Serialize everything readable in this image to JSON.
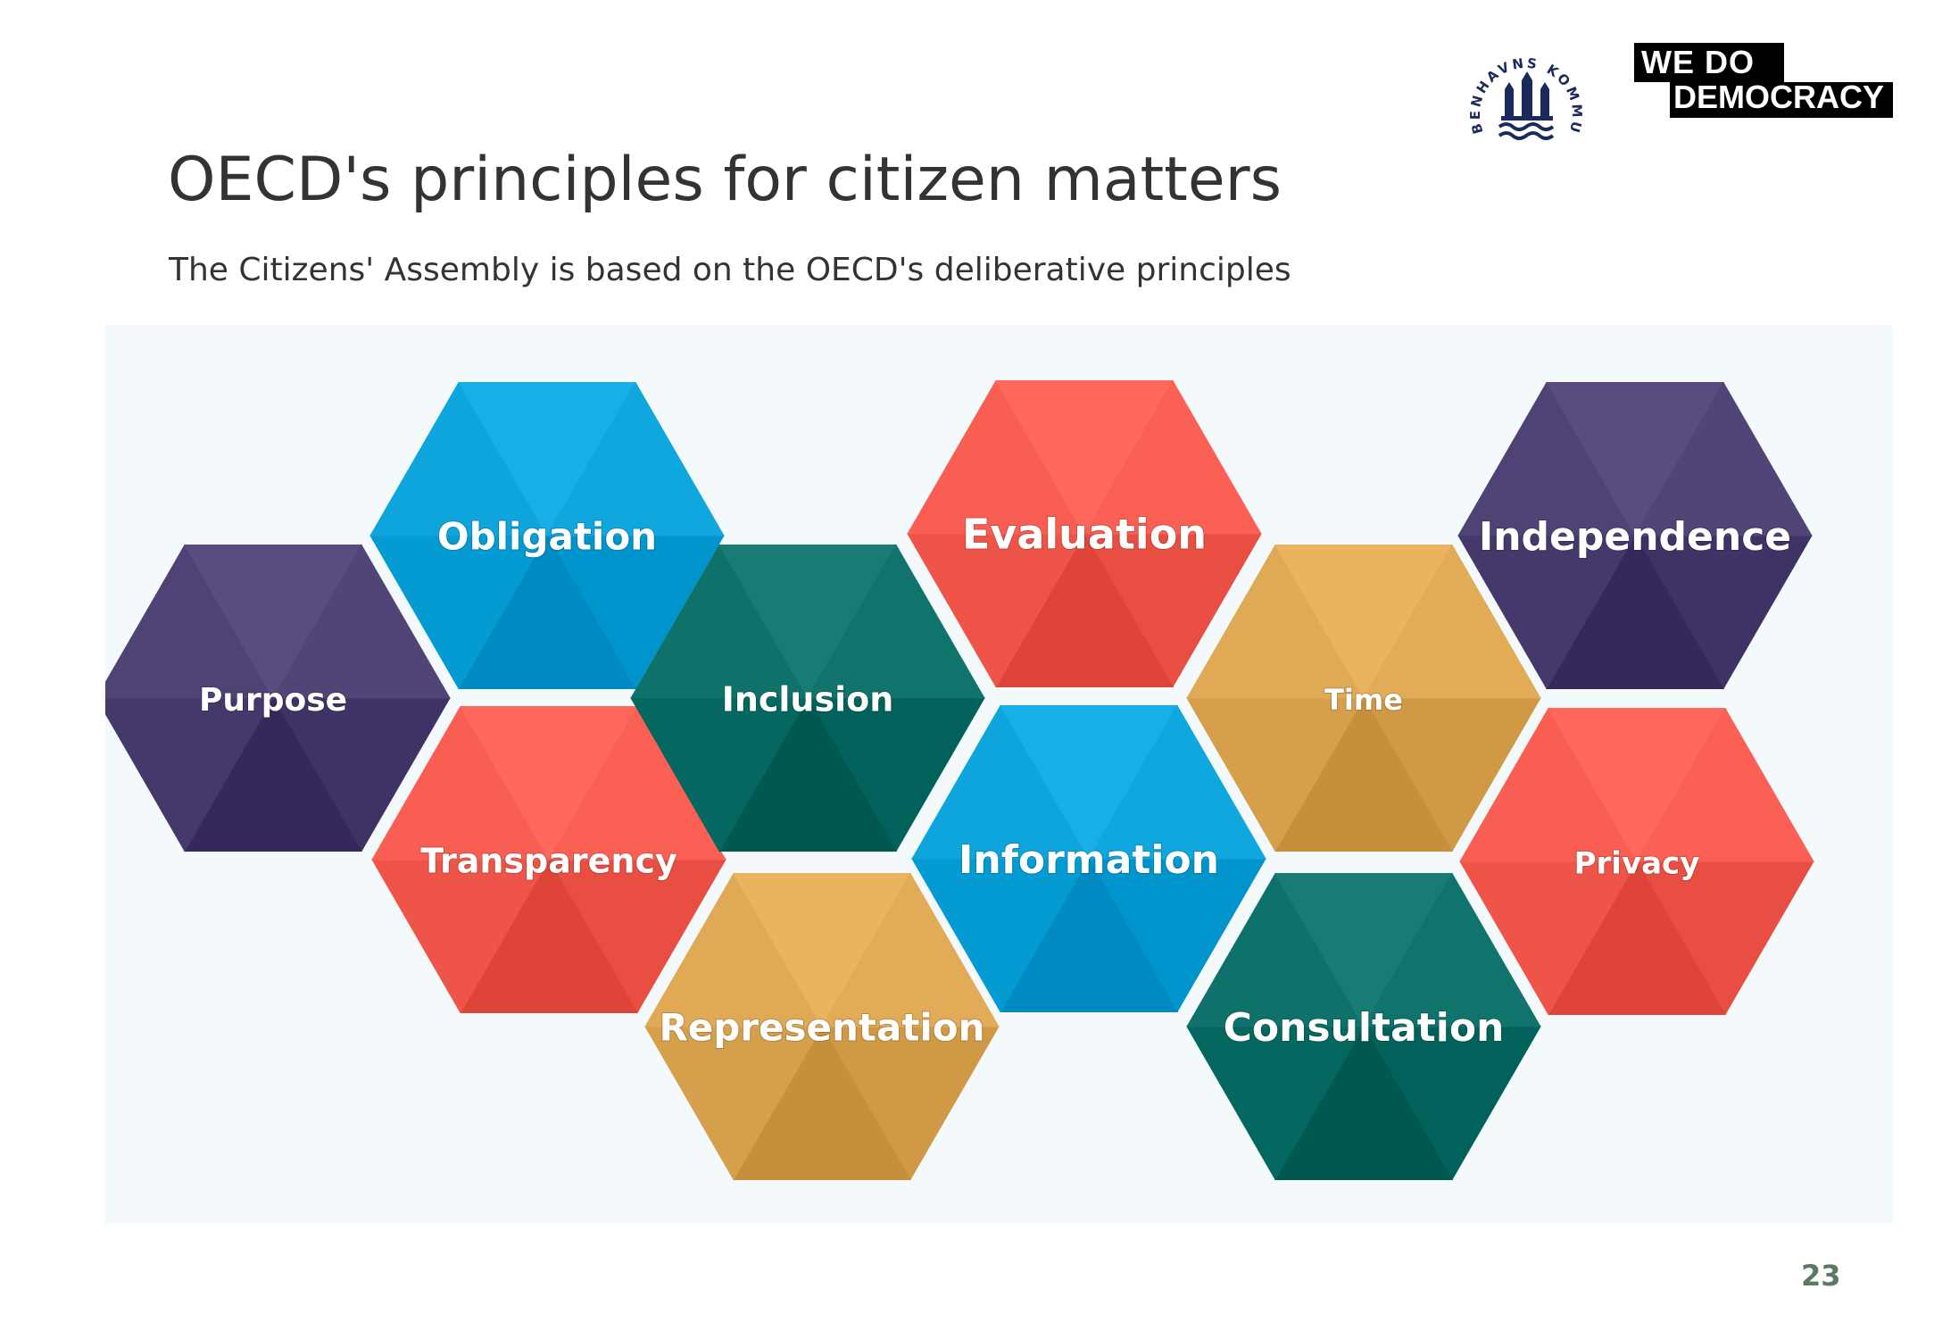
{
  "slide": {
    "title": "OECD's principles for citizen matters",
    "subtitle": "The Citizens' Assembly is based on the OECD's deliberative principles",
    "page_number": "23"
  },
  "logos": {
    "kk_text": "KØBENHAVNS KOMMUNE",
    "wdd_line1": "WE DO",
    "wdd_line2": "DEMOCRACY"
  },
  "colors": {
    "purple": "#4b3f72",
    "blue": "#0aa0d8",
    "teal": "#0b6e66",
    "coral": "#f55a4e",
    "gold": "#dba552",
    "page_number": "#5b7a63"
  },
  "hexagons": [
    {
      "label": "Purpose",
      "color": "purple"
    },
    {
      "label": "Obligation",
      "color": "blue"
    },
    {
      "label": "Transparency",
      "color": "coral"
    },
    {
      "label": "Inclusion",
      "color": "teal"
    },
    {
      "label": "Representation",
      "color": "gold"
    },
    {
      "label": "Evaluation",
      "color": "coral"
    },
    {
      "label": "Information",
      "color": "blue"
    },
    {
      "label": "Time",
      "color": "gold"
    },
    {
      "label": "Consultation",
      "color": "teal"
    },
    {
      "label": "Independence",
      "color": "purple"
    },
    {
      "label": "Privacy",
      "color": "coral"
    }
  ]
}
